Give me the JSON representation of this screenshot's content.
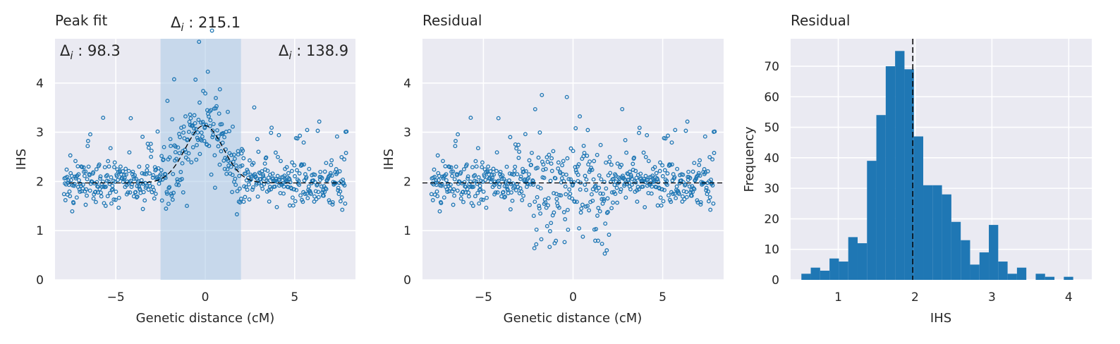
{
  "chart_data": [
    {
      "type": "scatter",
      "title": "Peak fit",
      "xlabel": "Genetic distance (cM)",
      "ylabel": "IHS",
      "xlim": [
        -8.4,
        8.4
      ],
      "ylim": [
        0,
        4.9
      ],
      "xticks": [
        -5,
        0,
        5
      ],
      "yticks": [
        0,
        1,
        2,
        3,
        4
      ],
      "xtick_labels": [
        "−5",
        "0",
        "5"
      ],
      "ytick_labels": [
        "0",
        "1",
        "2",
        "3",
        "4"
      ],
      "grid": true,
      "shaded_region": [
        -2.5,
        2.0
      ],
      "peak_fit_curve": {
        "style": "dashed",
        "color": "#000000",
        "baseline": 1.97,
        "amplitude": 1.17,
        "center": -0.05,
        "width": 1.05
      },
      "annotations": [
        {
          "text": "Δ",
          "sub": "i",
          "value": " : 98.3",
          "position": "top-left"
        },
        {
          "text": "Δ",
          "sub": "i",
          "value": " : 215.1",
          "position": "above-shaded-region"
        },
        {
          "text": "Δ",
          "sub": "i",
          "value": " : 138.9",
          "position": "top-right"
        }
      ],
      "points": {
        "n": 620,
        "x_range": [
          -7.9,
          7.9
        ],
        "baseline": 1.97,
        "note_values": "dense scatter around baseline with peak near 0"
      }
    },
    {
      "type": "scatter",
      "title": "Residual",
      "xlabel": "Genetic distance (cM)",
      "ylabel": "IHS",
      "xlim": [
        -8.4,
        8.4
      ],
      "ylim": [
        0,
        4.9
      ],
      "xticks": [
        -5,
        0,
        5
      ],
      "yticks": [
        0,
        1,
        2,
        3,
        4
      ],
      "xtick_labels": [
        "−5",
        "0",
        "5"
      ],
      "ytick_labels": [
        "0",
        "1",
        "2",
        "3",
        "4"
      ],
      "grid": true,
      "reference_line": {
        "y": 1.97,
        "style": "dashed",
        "color": "#000000"
      }
    },
    {
      "type": "bar",
      "title": "Residual",
      "xlabel": "IHS",
      "ylabel": "Frequency",
      "xlim": [
        0.38,
        4.3
      ],
      "ylim": [
        0,
        79
      ],
      "xticks": [
        1,
        2,
        3,
        4
      ],
      "yticks": [
        0,
        10,
        20,
        30,
        40,
        50,
        60,
        70
      ],
      "xtick_labels": [
        "1",
        "2",
        "3",
        "4"
      ],
      "ytick_labels": [
        "0",
        "10",
        "20",
        "30",
        "40",
        "50",
        "60",
        "70"
      ],
      "grid": true,
      "bin_start": 0.52,
      "bin_width": 0.122,
      "values": [
        2,
        4,
        3,
        7,
        6,
        14,
        12,
        39,
        54,
        70,
        75,
        69,
        47,
        31,
        31,
        28,
        19,
        13,
        5,
        9,
        18,
        6,
        2,
        4,
        0,
        2,
        1,
        0,
        1
      ],
      "reference_line": {
        "x": 1.97,
        "style": "dashed",
        "color": "#000000"
      }
    }
  ],
  "colors": {
    "background": "#eaeaf2",
    "points": "#1f77b4",
    "bars": "#1f77b4",
    "shade": "#a9c8e6",
    "grid": "#ffffff"
  }
}
